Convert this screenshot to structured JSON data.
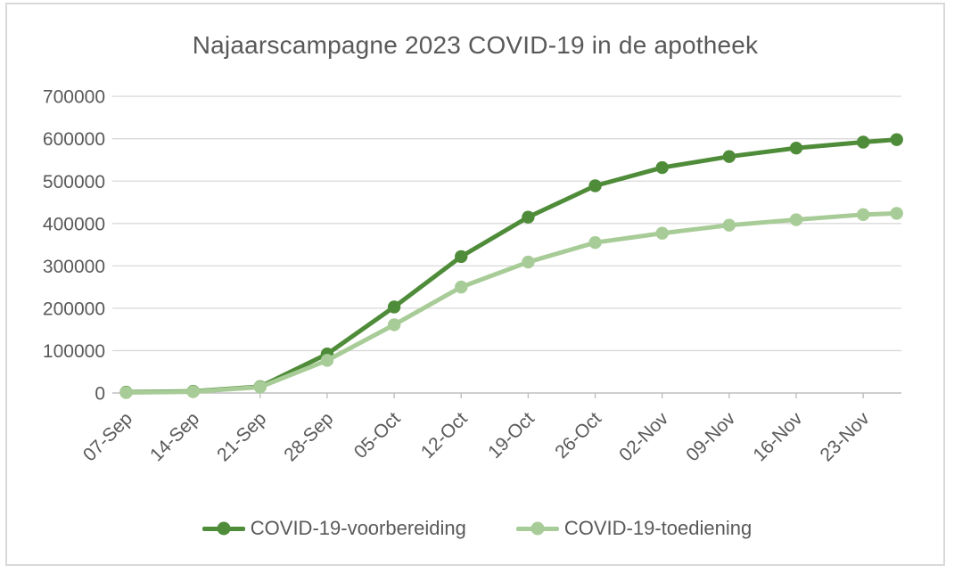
{
  "chart": {
    "title": "Najaarscampagne 2023 COVID-19 in de apotheek"
  },
  "colors": {
    "text": "#595959",
    "gridline": "#d9d9d9",
    "axis": "#bfbfbf",
    "frame_border": "#d9d9d9",
    "background": "#ffffff",
    "series_dark_green": "#4f8c39",
    "series_light_green": "#a8cc97"
  },
  "chart_data": {
    "type": "line",
    "title": "Najaarscampagne 2023 COVID-19 in de apotheek",
    "categories": [
      "07-Sep",
      "14-Sep",
      "21-Sep",
      "28-Sep",
      "05-Oct",
      "12-Oct",
      "19-Oct",
      "26-Oct",
      "02-Nov",
      "09-Nov",
      "16-Nov",
      "23-Nov",
      ""
    ],
    "series": [
      {
        "name": "COVID-19-voorbereiding",
        "color": "#4f8c39",
        "values": [
          2000,
          4000,
          15000,
          92000,
          203000,
          322000,
          415000,
          489000,
          532000,
          558000,
          578000,
          592000,
          598000
        ]
      },
      {
        "name": "COVID-19-toediening",
        "color": "#a8cc97",
        "values": [
          1000,
          3000,
          14000,
          77000,
          161000,
          250000,
          309000,
          355000,
          377000,
          396000,
          409000,
          421000,
          424000
        ]
      }
    ],
    "ylim": [
      0,
      700000
    ],
    "yticks": [
      0,
      100000,
      200000,
      300000,
      400000,
      500000,
      600000,
      700000
    ],
    "xlabel": "",
    "ylabel": "",
    "grid": "horizontal",
    "legend_position": "bottom",
    "x_tick_rotation_deg": 45
  }
}
